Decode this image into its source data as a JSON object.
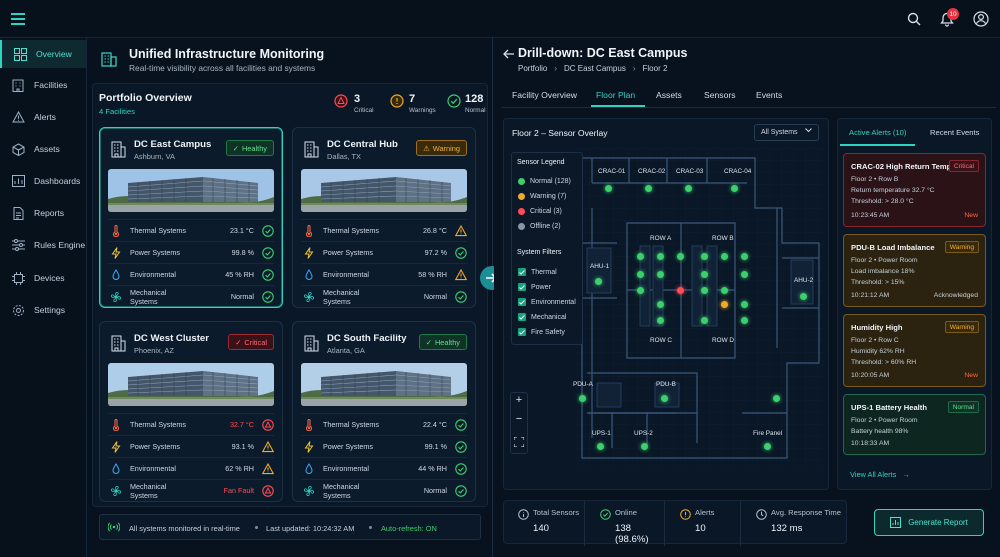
{
  "header": {
    "notification_count": "10"
  },
  "sidebar": {
    "items": [
      {
        "label": "Overview",
        "icon": "grid-icon"
      },
      {
        "label": "Facilities",
        "icon": "building-icon"
      },
      {
        "label": "Alerts",
        "icon": "warning-icon"
      },
      {
        "label": "Assets",
        "icon": "cube-icon"
      },
      {
        "label": "Dashboards",
        "icon": "chart-icon"
      },
      {
        "label": "Reports",
        "icon": "document-icon"
      },
      {
        "label": "Rules Engine",
        "icon": "sliders-icon"
      },
      {
        "label": "Devices",
        "icon": "device-icon"
      },
      {
        "label": "Settings",
        "icon": "gear-icon"
      }
    ]
  },
  "overview": {
    "title": "Unified Infrastructure Monitoring",
    "subtitle": "Real-time visibility across all facilities and systems",
    "portfolio_title": "Portfolio Overview",
    "facility_count": "4 Facilities",
    "counts": {
      "critical": "3",
      "critical_label": "Critical",
      "warnings": "7",
      "warnings_label": "Warnings",
      "normal": "128",
      "normal_label": "Normal"
    }
  },
  "facilities": [
    {
      "name": "DC East Campus",
      "location": "Ashburn, VA",
      "status": "Healthy",
      "rows": [
        {
          "label": "Thermal Systems",
          "value": "23.1 °C",
          "state": "ok"
        },
        {
          "label": "Power Systems",
          "value": "99.8 %",
          "state": "ok"
        },
        {
          "label": "Environmental",
          "value": "45 % RH",
          "state": "ok"
        },
        {
          "label": "Mechanical Systems",
          "value": "Normal",
          "state": "ok"
        }
      ]
    },
    {
      "name": "DC Central Hub",
      "location": "Dallas, TX",
      "status": "Warning",
      "rows": [
        {
          "label": "Thermal Systems",
          "value": "26.8 °C",
          "state": "warn"
        },
        {
          "label": "Power Systems",
          "value": "97.2 %",
          "state": "ok"
        },
        {
          "label": "Environmental",
          "value": "58 % RH",
          "state": "warn"
        },
        {
          "label": "Mechanical Systems",
          "value": "Normal",
          "state": "ok"
        }
      ]
    },
    {
      "name": "DC West Cluster",
      "location": "Phoenix, AZ",
      "status": "Critical",
      "rows": [
        {
          "label": "Thermal Systems",
          "value": "32.7 °C",
          "state": "crit"
        },
        {
          "label": "Power Systems",
          "value": "93.1 %",
          "state": "warn"
        },
        {
          "label": "Environmental",
          "value": "62 % RH",
          "state": "warn"
        },
        {
          "label": "Mechanical Systems",
          "value": "Fan Fault",
          "state": "crit"
        }
      ]
    },
    {
      "name": "DC South Facility",
      "location": "Atlanta, GA",
      "status": "Healthy",
      "rows": [
        {
          "label": "Thermal Systems",
          "value": "22.4 °C",
          "state": "ok"
        },
        {
          "label": "Power Systems",
          "value": "99.1 %",
          "state": "ok"
        },
        {
          "label": "Environmental",
          "value": "44 % RH",
          "state": "ok"
        },
        {
          "label": "Mechanical Systems",
          "value": "Normal",
          "state": "ok"
        }
      ]
    }
  ],
  "footer_status": {
    "monitored": "All systems monitored in real-time",
    "last_updated": "Last updated: 10:24:32 AM",
    "auto_refresh": "Auto-refresh: ON"
  },
  "drilldown": {
    "title": "Drill-down: DC East Campus",
    "breadcrumb": [
      "Portfolio",
      "DC East Campus",
      "Floor 2"
    ],
    "tabs": [
      "Facility Overview",
      "Floor Plan",
      "Assets",
      "Sensors",
      "Events"
    ],
    "active_tab": "Floor Plan",
    "overlay_title": "Floor 2 – Sensor Overlay",
    "system_select": "All Systems",
    "legend_title": "Sensor Legend",
    "legend": [
      {
        "label": "Normal (128)",
        "color": "#3ccf6e"
      },
      {
        "label": "Warning (7)",
        "color": "#f0a928"
      },
      {
        "label": "Critical (3)",
        "color": "#ff4b55"
      },
      {
        "label": "Offline (2)",
        "color": "#8a96a3"
      }
    ],
    "filters_title": "System Filters",
    "filters": [
      "Thermal",
      "Power",
      "Environmental",
      "Mechanical",
      "Fire Safety"
    ],
    "map_labels": [
      "CRAC-01",
      "CRAC-02",
      "CRAC-03",
      "CRAC-04",
      "ROW A",
      "ROW B",
      "ROW C",
      "ROW D",
      "AHU-1",
      "AHU-2",
      "PDU-A",
      "PDU-B",
      "UPS-1",
      "UPS-2",
      "Fire Panel"
    ]
  },
  "alerts_panel": {
    "tabs": [
      "Active Alerts (10)",
      "Recent Events"
    ],
    "items": [
      {
        "title": "CRAC-02 High Return Temp",
        "badge": "Critical",
        "lines": [
          "Floor 2 • Row B",
          "Return temperature 32.7 °C",
          "Threshold: > 28.0 °C"
        ],
        "time": "10:23:45 AM",
        "tag": "New"
      },
      {
        "title": "PDU-B Load Imbalance",
        "badge": "Warning",
        "lines": [
          "Floor 2 • Power Room",
          "Load imbalance 18%",
          "Threshold: > 15%"
        ],
        "time": "10:21:12 AM",
        "tag": "Acknowledged"
      },
      {
        "title": "Humidity High",
        "badge": "Warning",
        "lines": [
          "Floor 2 • Row C",
          "Humidity 62% RH",
          "Threshold: > 60% RH"
        ],
        "time": "10:20:05 AM",
        "tag": "New"
      },
      {
        "title": "UPS-1 Battery Health",
        "badge": "Normal",
        "lines": [
          "Floor 2 • Power Room",
          "Battery health 98%"
        ],
        "time": "10:18:33 AM",
        "tag": ""
      }
    ],
    "view_all": "View All Alerts"
  },
  "stats": [
    {
      "label": "Total Sensors",
      "value": "140"
    },
    {
      "label": "Online",
      "value": "138 (98.6%)"
    },
    {
      "label": "Alerts",
      "value": "10"
    },
    {
      "label": "Avg. Response Time",
      "value": "132 ms"
    }
  ],
  "generate_report": "Generate Report",
  "colors": {
    "accent": "#2fd3c2",
    "ok": "#3ccf6e",
    "warn": "#f0a928",
    "crit": "#ff4b55",
    "bg": "#08121f"
  }
}
